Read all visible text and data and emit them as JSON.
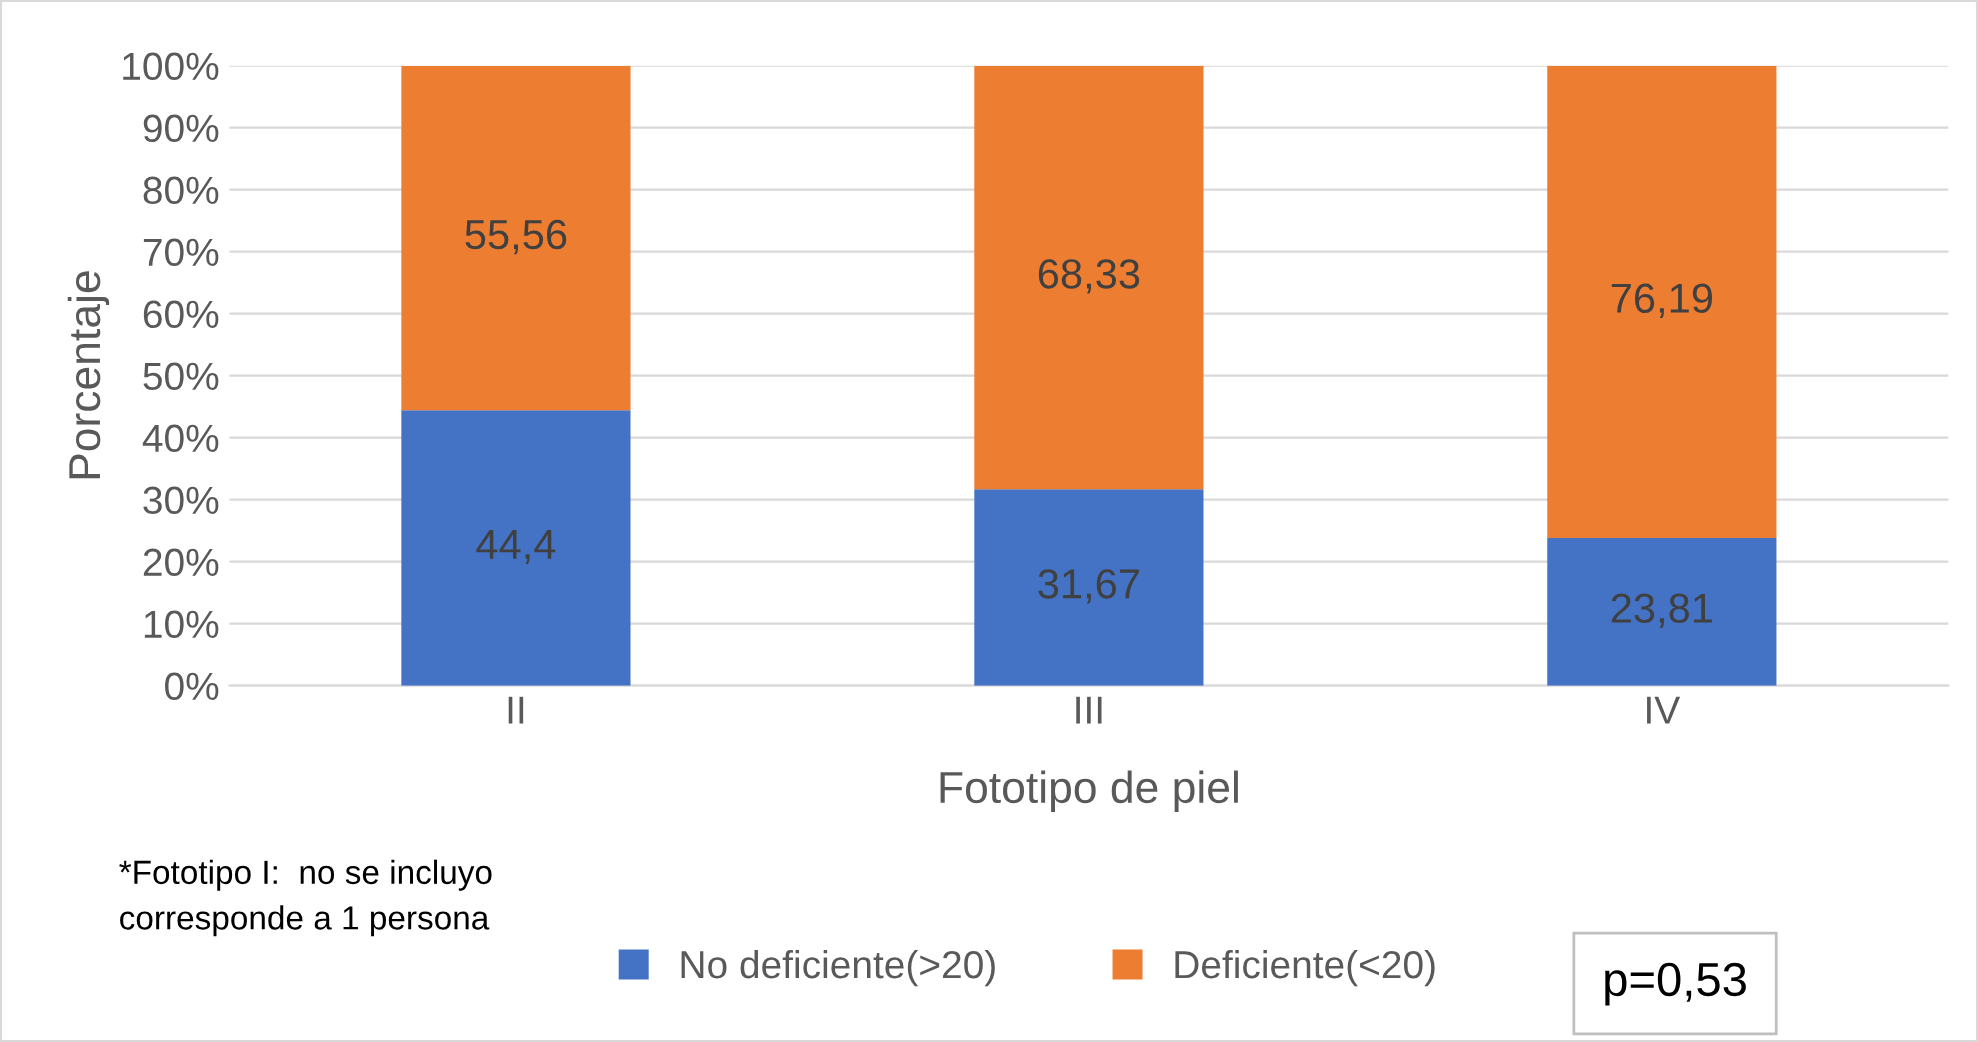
{
  "chart_data": {
    "type": "bar",
    "stacked": true,
    "xlabel": "Fototipo de piel",
    "ylabel": "Porcentaje",
    "categories": [
      "II",
      "III",
      "IV"
    ],
    "series": [
      {
        "name": "No deficiente(>20)",
        "color": "#4472c4",
        "values": [
          44.4,
          31.67,
          23.81
        ],
        "value_labels": [
          "44,4",
          "31,67",
          "23,81"
        ]
      },
      {
        "name": "Deficiente(<20)",
        "color": "#ed7d31",
        "values": [
          55.56,
          68.33,
          76.19
        ],
        "value_labels": [
          "55,56",
          "68,33",
          "76,19"
        ]
      }
    ],
    "ylim": [
      0,
      100
    ],
    "yticks": [
      {
        "value": 0,
        "label": "0%"
      },
      {
        "value": 10,
        "label": "10%"
      },
      {
        "value": 20,
        "label": "20%"
      },
      {
        "value": 30,
        "label": "30%"
      },
      {
        "value": 40,
        "label": "40%"
      },
      {
        "value": 50,
        "label": "50%"
      },
      {
        "value": 60,
        "label": "60%"
      },
      {
        "value": 70,
        "label": "70%"
      },
      {
        "value": 80,
        "label": "80%"
      },
      {
        "value": 90,
        "label": "90%"
      },
      {
        "value": 100,
        "label": "100%"
      }
    ],
    "grid": "y",
    "legend": "bottom",
    "annotations": [
      "*Fototipo I:  no se incluyo\ncorresponde a 1 persona",
      "p=0,53"
    ]
  }
}
